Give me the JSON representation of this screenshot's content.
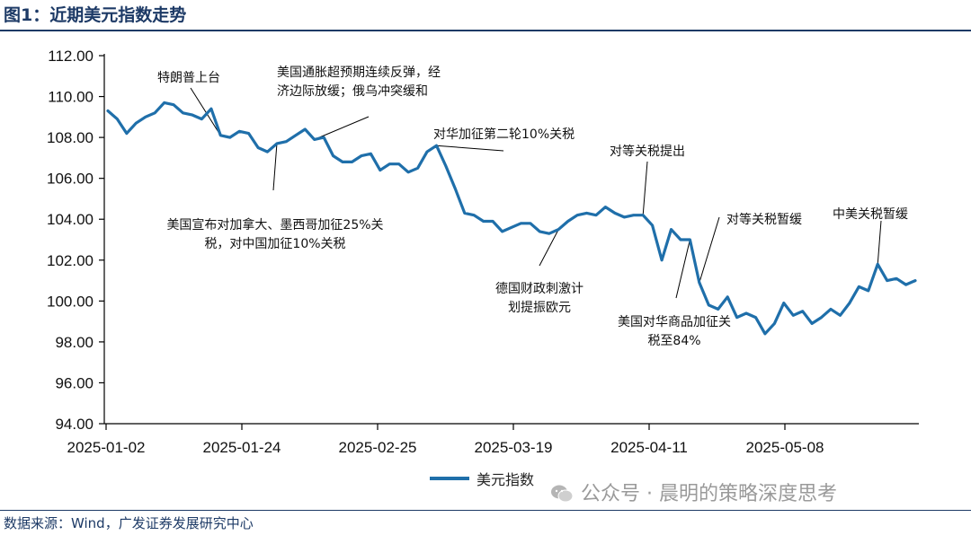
{
  "header": {
    "title": "图1：近期美元指数走势"
  },
  "footer": {
    "source": "数据来源：Wind，广发证券发展研究中心",
    "watermark": "公众号 · 晨明的策略深度思考"
  },
  "chart_data": {
    "type": "line",
    "title": "图1：近期美元指数走势",
    "xlabel": "",
    "ylabel": "",
    "ylim": [
      94,
      112
    ],
    "yticks": [
      "94.00",
      "96.00",
      "98.00",
      "100.00",
      "102.00",
      "104.00",
      "106.00",
      "108.00",
      "110.00",
      "112.00"
    ],
    "xticks": [
      "2025-01-02",
      "2025-01-24",
      "2025-02-25",
      "2025-03-19",
      "2025-04-11",
      "2025-05-08"
    ],
    "grid": false,
    "legend_position": "bottom-center",
    "color": "#1f6faa",
    "series": [
      {
        "name": "美元指数",
        "values": [
          109.3,
          108.9,
          108.2,
          108.7,
          109.0,
          109.2,
          109.7,
          109.6,
          109.2,
          109.1,
          108.9,
          109.4,
          108.1,
          108.0,
          108.3,
          108.2,
          107.5,
          107.3,
          107.7,
          107.8,
          108.1,
          108.4,
          107.9,
          108.0,
          107.1,
          106.8,
          106.8,
          107.1,
          107.2,
          106.4,
          106.7,
          106.7,
          106.3,
          106.5,
          107.3,
          107.6,
          106.6,
          105.5,
          104.3,
          104.2,
          103.9,
          103.9,
          103.4,
          103.6,
          103.8,
          103.8,
          103.4,
          103.3,
          103.5,
          103.9,
          104.2,
          104.3,
          104.2,
          104.6,
          104.3,
          104.1,
          104.2,
          104.2,
          103.7,
          102.0,
          103.5,
          103.0,
          103.0,
          100.9,
          99.8,
          99.6,
          100.2,
          99.2,
          99.4,
          99.2,
          98.4,
          98.9,
          99.9,
          99.3,
          99.5,
          98.9,
          99.2,
          99.6,
          99.3,
          99.9,
          100.7,
          100.5,
          101.8,
          101.0,
          101.1,
          100.8,
          101.0
        ]
      }
    ],
    "annotations": [
      {
        "text": "特朗普上台"
      },
      {
        "lines": [
          "美国通胀超预期连续反弹，经",
          "济边际放缓；俄乌冲突缓和"
        ]
      },
      {
        "lines": [
          "美国宣布对加拿大、墨西哥加征25%关",
          "税，对中国加征10%关税"
        ]
      },
      {
        "text": "对华加征第二轮10%关税"
      },
      {
        "lines": [
          "德国财政刺激计",
          "划提振欧元"
        ]
      },
      {
        "text": "对等关税提出"
      },
      {
        "text": "对等关税暂缓"
      },
      {
        "lines": [
          "美国对华商品加征关",
          "税至84%"
        ]
      },
      {
        "text": "中美关税暂缓"
      }
    ]
  }
}
